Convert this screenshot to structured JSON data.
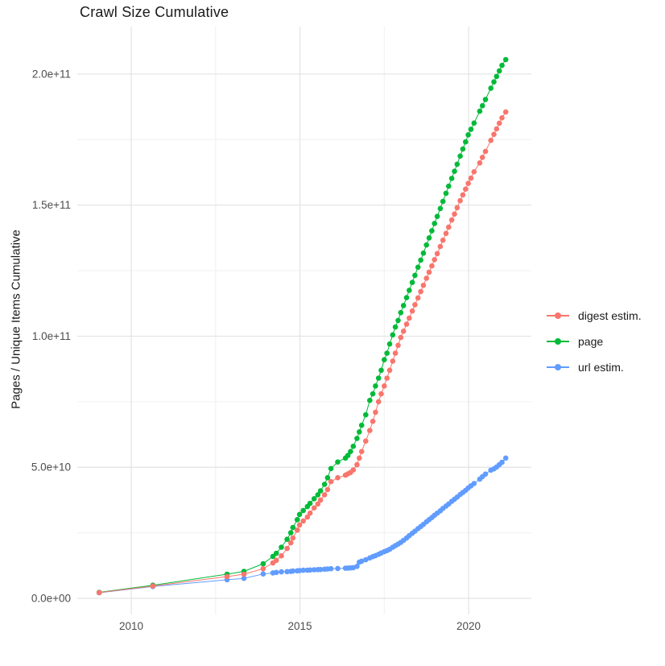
{
  "title": "Crawl Size Cumulative",
  "axes": {
    "y_label": "Pages / Unique Items Cumulative",
    "x_label": ""
  },
  "colors": {
    "background": "#FFFFFF",
    "grid_major": "#E3E3E3",
    "grid_minor": "#F0F0F0",
    "tick_text": "#4D4D4D",
    "text": "#1A1A1A",
    "digest": "#F8766D",
    "page": "#00BA38",
    "url": "#619CFF"
  },
  "legend": {
    "position": "right",
    "items": [
      {
        "label": "digest estim.",
        "color": "#F8766D"
      },
      {
        "label": "page",
        "color": "#00BA38"
      },
      {
        "label": "url estim.",
        "color": "#619CFF"
      }
    ]
  },
  "chart_data": {
    "type": "line",
    "title": "Crawl Size Cumulative",
    "xlabel": "",
    "ylabel": "Pages / Unique Items Cumulative",
    "grid": true,
    "legend_position": "right",
    "value_unit_multiplier": 1000000000,
    "value_unit": "items (values stored in billions, 1e9)",
    "xlim": [
      2008.4,
      2021.86
    ],
    "ylim_billions": [
      -6.15,
      218.1
    ],
    "x_ticks": [
      {
        "value": 2010,
        "label": "2010"
      },
      {
        "value": 2015,
        "label": "2015"
      },
      {
        "value": 2020,
        "label": "2020"
      }
    ],
    "x_minor_ticks": [
      2012.5,
      2017.5
    ],
    "y_ticks": [
      {
        "value": 0,
        "label": "0.0e+00"
      },
      {
        "value": 50,
        "label": "5.0e+10"
      },
      {
        "value": 100,
        "label": "1.0e+11"
      },
      {
        "value": 150,
        "label": "1.5e+11"
      },
      {
        "value": 200,
        "label": "2.0e+11"
      }
    ],
    "y_minor_ticks": [
      25,
      75,
      125,
      175
    ],
    "series": [
      {
        "name": "digest estim.",
        "color": "#F8766D",
        "points": [
          [
            2009.05,
            2.2
          ],
          [
            2010.64,
            4.7
          ],
          [
            2012.84,
            8.3
          ],
          [
            2013.34,
            9.2
          ],
          [
            2013.91,
            11.3
          ],
          [
            2014.2,
            13.5
          ],
          [
            2014.3,
            14.5
          ],
          [
            2014.45,
            16.2
          ],
          [
            2014.62,
            19.0
          ],
          [
            2014.73,
            21.2
          ],
          [
            2014.79,
            23.0
          ],
          [
            2014.92,
            26.0
          ],
          [
            2014.99,
            28.0
          ],
          [
            2015.1,
            29.5
          ],
          [
            2015.22,
            31.0
          ],
          [
            2015.3,
            32.5
          ],
          [
            2015.42,
            34.5
          ],
          [
            2015.53,
            36.0
          ],
          [
            2015.61,
            37.5
          ],
          [
            2015.73,
            39.5
          ],
          [
            2015.82,
            41.5
          ],
          [
            2015.92,
            44.5
          ],
          [
            2016.12,
            46.0
          ],
          [
            2016.35,
            47.0
          ],
          [
            2016.42,
            47.5
          ],
          [
            2016.5,
            48.0
          ],
          [
            2016.58,
            49.0
          ],
          [
            2016.69,
            51.0
          ],
          [
            2016.76,
            53.5
          ],
          [
            2016.83,
            56.0
          ],
          [
            2016.95,
            60.0
          ],
          [
            2017.07,
            64.0
          ],
          [
            2017.16,
            67.5
          ],
          [
            2017.24,
            71.0
          ],
          [
            2017.33,
            75.0
          ],
          [
            2017.41,
            78.0
          ],
          [
            2017.5,
            81.0
          ],
          [
            2017.58,
            84.0
          ],
          [
            2017.66,
            87.0
          ],
          [
            2017.75,
            90.5
          ],
          [
            2017.83,
            93.5
          ],
          [
            2017.91,
            96.5
          ],
          [
            2017.99,
            99.5
          ],
          [
            2018.07,
            101.9
          ],
          [
            2018.16,
            104.6
          ],
          [
            2018.24,
            106.9
          ],
          [
            2018.33,
            109.6
          ],
          [
            2018.41,
            112.0
          ],
          [
            2018.5,
            114.6
          ],
          [
            2018.58,
            117.0
          ],
          [
            2018.66,
            119.4
          ],
          [
            2018.75,
            122.1
          ],
          [
            2018.83,
            124.4
          ],
          [
            2018.91,
            126.8
          ],
          [
            2018.99,
            129.2
          ],
          [
            2019.07,
            131.5
          ],
          [
            2019.16,
            134.2
          ],
          [
            2019.24,
            136.6
          ],
          [
            2019.33,
            139.2
          ],
          [
            2019.41,
            141.6
          ],
          [
            2019.5,
            144.3
          ],
          [
            2019.58,
            146.6
          ],
          [
            2019.66,
            149.0
          ],
          [
            2019.75,
            151.7
          ],
          [
            2019.83,
            153.9
          ],
          [
            2019.91,
            156.1
          ],
          [
            2019.99,
            158.3
          ],
          [
            2020.07,
            160.3
          ],
          [
            2020.16,
            162.7
          ],
          [
            2020.33,
            166.1
          ],
          [
            2020.41,
            168.2
          ],
          [
            2020.5,
            170.5
          ],
          [
            2020.66,
            174.7
          ],
          [
            2020.75,
            177.0
          ],
          [
            2020.83,
            179.1
          ],
          [
            2020.91,
            181.2
          ],
          [
            2020.99,
            183.3
          ],
          [
            2021.1,
            185.5
          ]
        ]
      },
      {
        "name": "page",
        "color": "#00BA38",
        "points": [
          [
            2009.05,
            2.3
          ],
          [
            2010.64,
            5.0
          ],
          [
            2012.84,
            9.2
          ],
          [
            2013.34,
            10.3
          ],
          [
            2013.91,
            13.2
          ],
          [
            2014.2,
            16.0
          ],
          [
            2014.3,
            17.2
          ],
          [
            2014.45,
            19.5
          ],
          [
            2014.62,
            22.5
          ],
          [
            2014.73,
            25.0
          ],
          [
            2014.79,
            27.0
          ],
          [
            2014.92,
            30.0
          ],
          [
            2014.99,
            32.0
          ],
          [
            2015.1,
            33.5
          ],
          [
            2015.22,
            35.0
          ],
          [
            2015.3,
            36.2
          ],
          [
            2015.42,
            38.0
          ],
          [
            2015.53,
            39.5
          ],
          [
            2015.61,
            41.0
          ],
          [
            2015.73,
            43.5
          ],
          [
            2015.82,
            46.0
          ],
          [
            2015.92,
            49.5
          ],
          [
            2016.12,
            52.0
          ],
          [
            2016.35,
            53.5
          ],
          [
            2016.42,
            54.5
          ],
          [
            2016.5,
            56.0
          ],
          [
            2016.58,
            58.0
          ],
          [
            2016.69,
            61.0
          ],
          [
            2016.76,
            63.5
          ],
          [
            2016.83,
            66.0
          ],
          [
            2016.95,
            70.0
          ],
          [
            2017.07,
            75.5
          ],
          [
            2017.16,
            78.0
          ],
          [
            2017.24,
            81.0
          ],
          [
            2017.33,
            84.0
          ],
          [
            2017.41,
            87.0
          ],
          [
            2017.5,
            91.0
          ],
          [
            2017.58,
            93.5
          ],
          [
            2017.66,
            97.0
          ],
          [
            2017.75,
            100.5
          ],
          [
            2017.83,
            103.5
          ],
          [
            2017.91,
            106.0
          ],
          [
            2017.99,
            109.0
          ],
          [
            2018.07,
            111.7
          ],
          [
            2018.16,
            114.7
          ],
          [
            2018.24,
            117.5
          ],
          [
            2018.33,
            120.5
          ],
          [
            2018.41,
            123.2
          ],
          [
            2018.5,
            126.3
          ],
          [
            2018.58,
            129.0
          ],
          [
            2018.66,
            131.7
          ],
          [
            2018.75,
            134.8
          ],
          [
            2018.83,
            137.5
          ],
          [
            2018.91,
            140.2
          ],
          [
            2018.99,
            143.0
          ],
          [
            2019.07,
            145.7
          ],
          [
            2019.16,
            148.7
          ],
          [
            2019.24,
            151.4
          ],
          [
            2019.33,
            154.5
          ],
          [
            2019.41,
            157.2
          ],
          [
            2019.5,
            160.2
          ],
          [
            2019.58,
            162.9
          ],
          [
            2019.66,
            165.6
          ],
          [
            2019.75,
            168.7
          ],
          [
            2019.83,
            171.4
          ],
          [
            2019.91,
            174.1
          ],
          [
            2019.99,
            176.8
          ],
          [
            2020.07,
            178.9
          ],
          [
            2020.16,
            181.3
          ],
          [
            2020.33,
            185.8
          ],
          [
            2020.41,
            187.9
          ],
          [
            2020.5,
            190.3
          ],
          [
            2020.66,
            194.6
          ],
          [
            2020.75,
            197.0
          ],
          [
            2020.83,
            199.1
          ],
          [
            2020.91,
            201.2
          ],
          [
            2020.99,
            203.3
          ],
          [
            2021.1,
            205.5
          ]
        ]
      },
      {
        "name": "url estim.",
        "color": "#619CFF",
        "points": [
          [
            2009.05,
            2.1
          ],
          [
            2010.64,
            4.5
          ],
          [
            2012.84,
            7.1
          ],
          [
            2013.34,
            7.6
          ],
          [
            2013.91,
            9.3
          ],
          [
            2014.2,
            9.7
          ],
          [
            2014.3,
            9.9
          ],
          [
            2014.45,
            10.1
          ],
          [
            2014.62,
            10.2
          ],
          [
            2014.73,
            10.3
          ],
          [
            2014.79,
            10.4
          ],
          [
            2014.92,
            10.5
          ],
          [
            2014.99,
            10.6
          ],
          [
            2015.1,
            10.7
          ],
          [
            2015.22,
            10.75
          ],
          [
            2015.3,
            10.8
          ],
          [
            2015.42,
            10.9
          ],
          [
            2015.53,
            10.95
          ],
          [
            2015.61,
            11.0
          ],
          [
            2015.73,
            11.1
          ],
          [
            2015.82,
            11.2
          ],
          [
            2015.92,
            11.3
          ],
          [
            2016.12,
            11.4
          ],
          [
            2016.35,
            11.5
          ],
          [
            2016.42,
            11.55
          ],
          [
            2016.5,
            11.6
          ],
          [
            2016.58,
            11.7
          ],
          [
            2016.69,
            12.2
          ],
          [
            2016.76,
            13.8
          ],
          [
            2016.83,
            14.2
          ],
          [
            2016.95,
            14.7
          ],
          [
            2017.07,
            15.4
          ],
          [
            2017.16,
            15.9
          ],
          [
            2017.24,
            16.3
          ],
          [
            2017.33,
            16.8
          ],
          [
            2017.41,
            17.3
          ],
          [
            2017.5,
            17.8
          ],
          [
            2017.58,
            18.2
          ],
          [
            2017.66,
            18.7
          ],
          [
            2017.75,
            19.5
          ],
          [
            2017.83,
            20.1
          ],
          [
            2017.91,
            20.7
          ],
          [
            2017.99,
            21.3
          ],
          [
            2018.07,
            22.1
          ],
          [
            2018.16,
            23.0
          ],
          [
            2018.24,
            23.9
          ],
          [
            2018.33,
            24.8
          ],
          [
            2018.41,
            25.6
          ],
          [
            2018.5,
            26.6
          ],
          [
            2018.58,
            27.4
          ],
          [
            2018.66,
            28.2
          ],
          [
            2018.75,
            29.2
          ],
          [
            2018.83,
            30.0
          ],
          [
            2018.91,
            30.8
          ],
          [
            2018.99,
            31.7
          ],
          [
            2019.07,
            32.5
          ],
          [
            2019.16,
            33.4
          ],
          [
            2019.24,
            34.3
          ],
          [
            2019.33,
            35.2
          ],
          [
            2019.41,
            36.0
          ],
          [
            2019.5,
            37.0
          ],
          [
            2019.58,
            37.8
          ],
          [
            2019.66,
            38.6
          ],
          [
            2019.75,
            39.6
          ],
          [
            2019.83,
            40.4
          ],
          [
            2019.91,
            41.2
          ],
          [
            2019.99,
            42.1
          ],
          [
            2020.07,
            42.9
          ],
          [
            2020.16,
            43.8
          ],
          [
            2020.33,
            45.5
          ],
          [
            2020.41,
            46.4
          ],
          [
            2020.5,
            47.4
          ],
          [
            2020.66,
            48.9
          ],
          [
            2020.75,
            49.4
          ],
          [
            2020.83,
            50.1
          ],
          [
            2020.91,
            51.0
          ],
          [
            2020.99,
            51.9
          ],
          [
            2021.1,
            53.5
          ]
        ]
      }
    ]
  }
}
